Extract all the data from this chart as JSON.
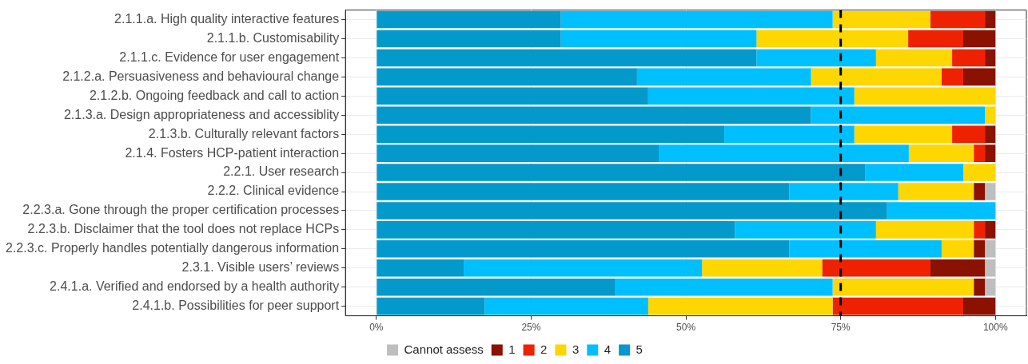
{
  "chart_data": {
    "type": "bar",
    "orientation": "horizontal",
    "stacked": true,
    "categories": [
      "2.1.1.a. High quality interactive features",
      "2.1.1.b. Customisability",
      "2.1.1.c. Evidence for user engagement",
      "2.1.2.a. Persuasiveness and behavioural change",
      "2.1.2.b. Ongoing feedback and call to action",
      "2.1.3.a. Design appropriateness and accessiblity",
      "2.1.3.b. Culturally relevant factors",
      "2.1.4. Fosters HCP-patient interaction",
      "2.2.1. User research",
      "2.2.2. Clinical evidence",
      "2.2.3.a. Gone through the proper certification processes",
      "2.2.3.b. Disclaimer that the tool does not replace HCPs",
      "2.2.3.c. Properly handles potentially dangerous information",
      "2.3.1. Visible users’ reviews",
      "2.4.1.a. Verified and endorsed by a health authority",
      "2.4.1.b. Possibilities for peer support"
    ],
    "series": [
      {
        "name": "5",
        "color": "#0399cb",
        "values": [
          29.8,
          29.8,
          61.4,
          42.1,
          43.9,
          70.2,
          56.2,
          45.6,
          79.0,
          66.7,
          82.5,
          57.9,
          66.7,
          14.1,
          38.6,
          17.5
        ]
      },
      {
        "name": "4",
        "color": "#00bfff",
        "values": [
          43.9,
          31.6,
          19.3,
          28.1,
          33.3,
          28.1,
          21.0,
          40.4,
          15.8,
          17.6,
          17.5,
          22.8,
          24.6,
          38.5,
          35.1,
          26.4
        ]
      },
      {
        "name": "3",
        "color": "#fed600",
        "values": [
          15.8,
          24.5,
          12.3,
          21.1,
          22.8,
          1.7,
          15.8,
          10.5,
          5.2,
          12.2,
          null,
          15.8,
          5.2,
          19.4,
          22.8,
          29.8
        ]
      },
      {
        "name": "2",
        "color": "#ee2200",
        "values": [
          8.8,
          8.9,
          5.3,
          3.5,
          null,
          null,
          5.3,
          1.8,
          null,
          null,
          null,
          1.8,
          null,
          17.5,
          null,
          21.1
        ]
      },
      {
        "name": "1",
        "color": "#8b1100",
        "values": [
          1.7,
          5.2,
          1.7,
          5.2,
          null,
          null,
          1.7,
          1.7,
          null,
          1.8,
          null,
          1.7,
          1.8,
          8.8,
          1.8,
          5.2
        ]
      },
      {
        "name": "Cannot assess",
        "color": "#bebebe",
        "values": [
          null,
          null,
          null,
          null,
          null,
          null,
          null,
          null,
          null,
          1.7,
          null,
          null,
          1.7,
          1.7,
          1.7,
          null
        ]
      }
    ],
    "xlim": [
      -5,
      105
    ],
    "xticks": [
      {
        "value": 0,
        "label": "0%"
      },
      {
        "value": 25,
        "label": "25%"
      },
      {
        "value": 50,
        "label": "50%"
      },
      {
        "value": 75,
        "label": "75%"
      },
      {
        "value": 100,
        "label": "100%"
      }
    ],
    "ref_lines": [
      {
        "axis": "x",
        "value": 75,
        "color": "#000000",
        "line_style": "dashed"
      }
    ],
    "grid": true,
    "legend": "bottom"
  }
}
